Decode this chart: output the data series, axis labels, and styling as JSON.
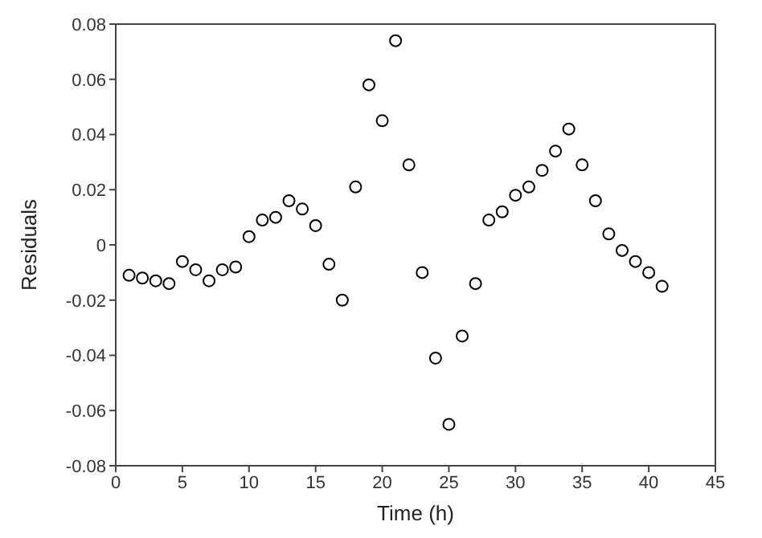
{
  "chart_data": {
    "type": "scatter",
    "xlabel": "Time (h)",
    "ylabel": "Residuals",
    "marker": "circle",
    "x": [
      1,
      2,
      3,
      4,
      5,
      6,
      7,
      8,
      9,
      10,
      11,
      12,
      13,
      14,
      15,
      16,
      17,
      18,
      19,
      20,
      21,
      22,
      23,
      24,
      25,
      26,
      27,
      28,
      29,
      30,
      31,
      32,
      33,
      34,
      35,
      36,
      37,
      38,
      39,
      40,
      41
    ],
    "series": [
      {
        "color": "#000000",
        "values": [
          -0.011,
          -0.012,
          -0.013,
          -0.014,
          -0.006,
          -0.009,
          -0.013,
          -0.009,
          -0.008,
          0.003,
          0.009,
          0.01,
          0.016,
          0.013,
          0.007,
          -0.007,
          -0.02,
          0.021,
          0.058,
          0.045,
          0.074,
          0.029,
          -0.01,
          -0.041,
          -0.065,
          -0.033,
          -0.014,
          0.009,
          0.012,
          0.018,
          0.021,
          0.027,
          0.034,
          0.042,
          0.029,
          0.016,
          0.004,
          -0.002,
          -0.006,
          -0.01,
          -0.015
        ]
      }
    ],
    "xlim": [
      0,
      45
    ],
    "xticks": [
      0,
      5,
      10,
      15,
      20,
      25,
      30,
      35,
      40,
      45
    ],
    "ylim": [
      -0.08,
      0.08
    ],
    "yticks": [
      -0.08,
      -0.06,
      -0.04,
      -0.02,
      0,
      0.02,
      0.04,
      0.06,
      0.08
    ]
  }
}
